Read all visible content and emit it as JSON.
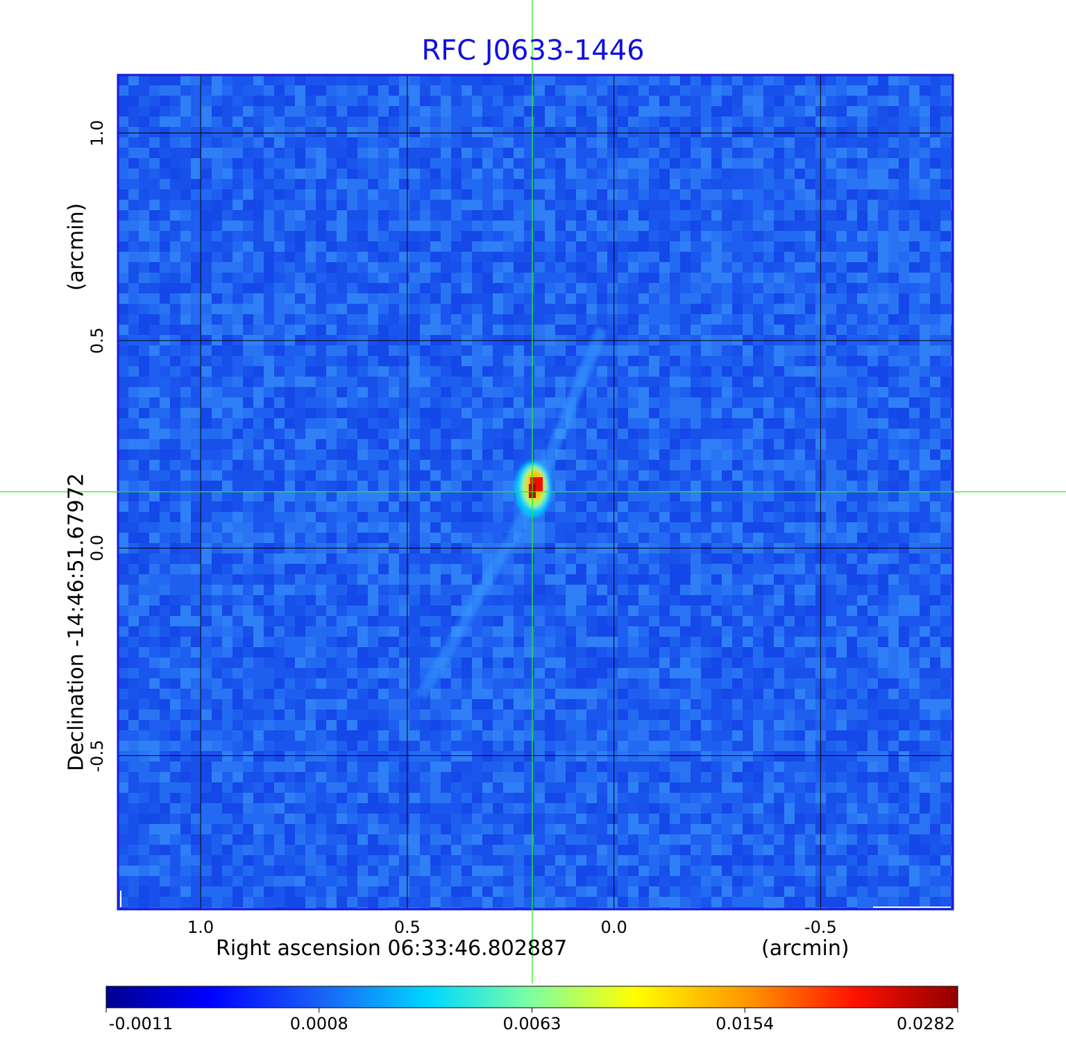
{
  "chart_data": {
    "type": "heatmap",
    "title": "RFC J0633-1446",
    "xlabel": "Right ascension  06:33:46.802887",
    "xunit": "(arcmin)",
    "ylabel": "Declination  -14:46:51.67972",
    "yunit": "(arcmin)",
    "xlim": [
      1.2,
      -0.82
    ],
    "ylim": [
      -0.87,
      1.14
    ],
    "x_ticks": [
      "1.0",
      "0.5",
      "0.0",
      "-0.5"
    ],
    "x_tick_values": [
      1.0,
      0.5,
      0.0,
      -0.5
    ],
    "y_ticks": [
      "1.0",
      "0.5",
      "0.0",
      "-0.5"
    ],
    "y_tick_values": [
      1.0,
      0.5,
      0.0,
      -0.5
    ],
    "grid": true,
    "peak": {
      "x": 0.2,
      "y": 0.14,
      "value": 0.0282
    },
    "crosshair": {
      "x": 0.2,
      "y": 0.14
    },
    "colorbar": {
      "colormap": "jet",
      "ticks": [
        "-0.0011",
        "0.0008",
        "0.0063",
        "0.0154",
        "0.0282"
      ],
      "tick_values": [
        -0.0011,
        0.0008,
        0.0063,
        0.0154,
        0.0282
      ]
    }
  },
  "colors": {
    "title": "#1010dd",
    "frame": "#1a1add",
    "background_level": "#1e5ff0",
    "grid": "#000000",
    "crosshair": "#22ee22"
  }
}
